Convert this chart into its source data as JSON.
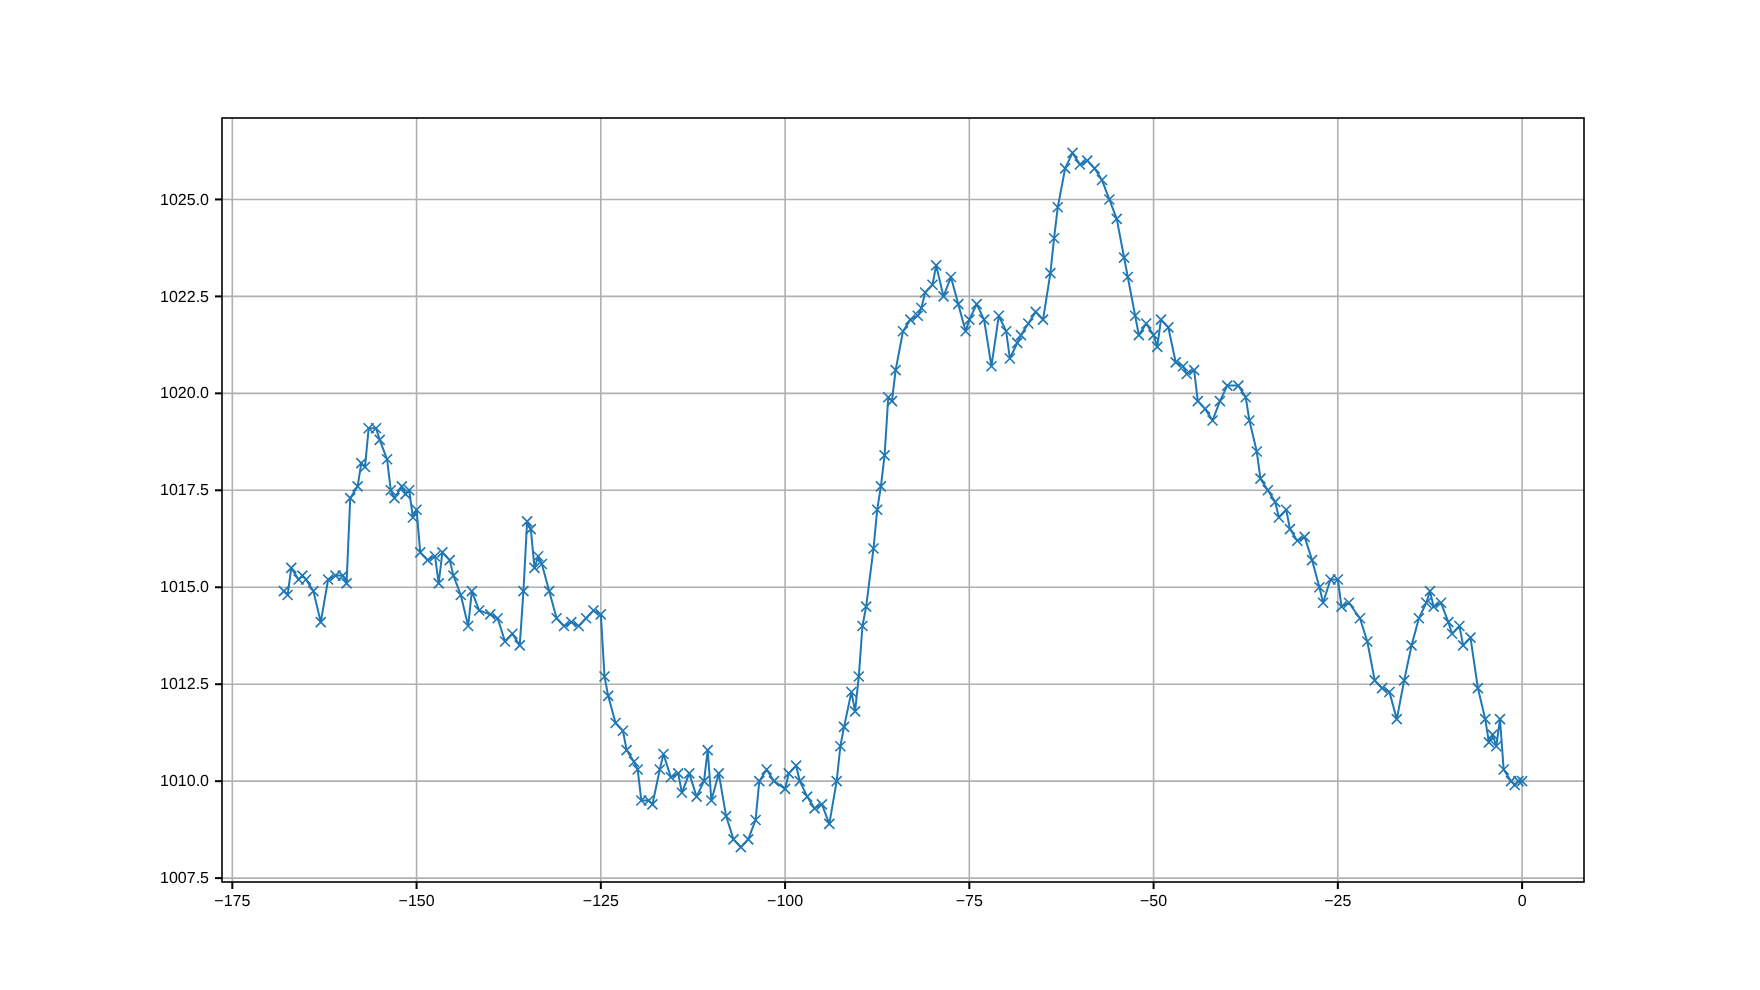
{
  "chart_data": {
    "type": "line",
    "marker": "cross",
    "line_style": "solid",
    "grid": true,
    "xlim": [
      -176.4,
      8.4
    ],
    "ylim": [
      1007.4,
      1027.1
    ],
    "xticks": [
      {
        "value": -175,
        "label": "−175"
      },
      {
        "value": -150,
        "label": "−150"
      },
      {
        "value": -125,
        "label": "−125"
      },
      {
        "value": -100,
        "label": "−100"
      },
      {
        "value": -75,
        "label": "−75"
      },
      {
        "value": -50,
        "label": "−50"
      },
      {
        "value": -25,
        "label": "−25"
      },
      0
    ],
    "yticks": [
      {
        "value": 1007.5,
        "label": "1007.5"
      },
      {
        "value": 1010,
        "label": "1010.0"
      },
      {
        "value": 1012.5,
        "label": "1012.5"
      },
      {
        "value": 1015,
        "label": "1015.0"
      },
      {
        "value": 1017.5,
        "label": "1017.5"
      },
      {
        "value": 1020,
        "label": "1020.0"
      },
      {
        "value": 1022.5,
        "label": "1022.5"
      },
      {
        "value": 1025,
        "label": "1025.0"
      }
    ],
    "series": [
      {
        "color": "#1f77b4",
        "x": [
          -168,
          -167.5,
          -167,
          -166,
          -165.5,
          -165,
          -164,
          -163,
          -162,
          -161,
          -160,
          -159.5,
          -159,
          -158,
          -157.5,
          -157,
          -156.5,
          -155.5,
          -155,
          -154,
          -153.5,
          -153,
          -152,
          -151.5,
          -151,
          -150.5,
          -150,
          -149.5,
          -148.5,
          -147.5,
          -147,
          -146.5,
          -145.5,
          -145,
          -144,
          -143,
          -142.5,
          -141.5,
          -140,
          -139,
          -138,
          -137,
          -136,
          -135.5,
          -135,
          -134.5,
          -134,
          -133.5,
          -133,
          -132,
          -131,
          -130,
          -129,
          -128,
          -127,
          -126,
          -125,
          -124.5,
          -124,
          -123,
          -122,
          -121.5,
          -120.5,
          -120,
          -119.5,
          -118.5,
          -118,
          -117,
          -116.5,
          -115.5,
          -114.5,
          -114,
          -113,
          -112,
          -111,
          -110.5,
          -110,
          -109,
          -108,
          -107,
          -106,
          -105,
          -104,
          -103.5,
          -102.5,
          -101.5,
          -100,
          -99.5,
          -98.5,
          -98,
          -97,
          -96,
          -95,
          -94,
          -93,
          -92.5,
          -92,
          -91,
          -90.5,
          -90,
          -89.5,
          -89,
          -88,
          -87.5,
          -87,
          -86.5,
          -86,
          -85.5,
          -85,
          -84,
          -83,
          -82,
          -81.5,
          -81,
          -80,
          -79.5,
          -78.5,
          -77.5,
          -76.5,
          -75.5,
          -75,
          -74,
          -73,
          -72,
          -71,
          -70,
          -69.5,
          -68.5,
          -68,
          -67,
          -66,
          -65,
          -64,
          -63.5,
          -63,
          -62,
          -61,
          -60,
          -59,
          -58,
          -57,
          -56,
          -55,
          -54,
          -53.5,
          -52.5,
          -52,
          -51,
          -50,
          -49.5,
          -49,
          -48,
          -47,
          -46,
          -45.5,
          -44.5,
          -44,
          -43,
          -42,
          -41,
          -40,
          -38.5,
          -37.5,
          -37,
          -36,
          -35.5,
          -34.5,
          -33.5,
          -33,
          -32,
          -31.5,
          -30.5,
          -29.5,
          -28.5,
          -27.5,
          -27,
          -26,
          -25,
          -24.5,
          -23.5,
          -22,
          -21,
          -20,
          -19,
          -18,
          -17,
          -16,
          -15,
          -14,
          -13,
          -12.5,
          -12,
          -11,
          -10,
          -9.5,
          -8.5,
          -8,
          -7,
          -6,
          -5,
          -4.5,
          -4,
          -3.5,
          -3,
          -2.5,
          -1.5,
          -1,
          -0.5,
          0
        ],
        "values": [
          1014.9,
          1014.8,
          1015.5,
          1015.2,
          1015.3,
          1015.2,
          1014.9,
          1014.1,
          1015.2,
          1015.3,
          1015.3,
          1015.1,
          1017.3,
          1017.6,
          1018.2,
          1018.1,
          1019.1,
          1019.1,
          1018.8,
          1018.3,
          1017.5,
          1017.3,
          1017.6,
          1017.4,
          1017.5,
          1016.8,
          1017.0,
          1015.9,
          1015.7,
          1015.8,
          1015.1,
          1015.9,
          1015.7,
          1015.3,
          1014.8,
          1014.0,
          1014.9,
          1014.4,
          1014.3,
          1014.2,
          1013.6,
          1013.8,
          1013.5,
          1014.9,
          1016.7,
          1016.5,
          1015.5,
          1015.8,
          1015.6,
          1014.9,
          1014.2,
          1014.0,
          1014.1,
          1014.0,
          1014.2,
          1014.4,
          1014.3,
          1012.7,
          1012.2,
          1011.5,
          1011.3,
          1010.8,
          1010.5,
          1010.3,
          1009.5,
          1009.5,
          1009.4,
          1010.3,
          1010.7,
          1010.1,
          1010.2,
          1009.7,
          1010.2,
          1009.6,
          1010.0,
          1010.8,
          1009.5,
          1010.2,
          1009.1,
          1008.5,
          1008.3,
          1008.5,
          1009.0,
          1010.0,
          1010.3,
          1010.0,
          1009.8,
          1010.2,
          1010.4,
          1010.0,
          1009.6,
          1009.3,
          1009.4,
          1008.9,
          1010.0,
          1010.9,
          1011.4,
          1012.3,
          1011.8,
          1012.7,
          1014.0,
          1014.5,
          1016.0,
          1017.0,
          1017.6,
          1018.4,
          1019.9,
          1019.8,
          1020.6,
          1021.6,
          1021.9,
          1022.0,
          1022.2,
          1022.6,
          1022.8,
          1023.3,
          1022.5,
          1023.0,
          1022.3,
          1021.6,
          1021.9,
          1022.3,
          1021.9,
          1020.7,
          1022.0,
          1021.6,
          1020.9,
          1021.3,
          1021.5,
          1021.8,
          1022.1,
          1021.9,
          1023.1,
          1024.0,
          1024.8,
          1025.8,
          1026.2,
          1025.9,
          1026.0,
          1025.8,
          1025.5,
          1025.0,
          1024.5,
          1023.5,
          1023.0,
          1022.0,
          1021.5,
          1021.8,
          1021.5,
          1021.2,
          1021.9,
          1021.7,
          1020.8,
          1020.7,
          1020.5,
          1020.6,
          1019.8,
          1019.6,
          1019.3,
          1019.8,
          1020.2,
          1020.2,
          1019.9,
          1019.3,
          1018.5,
          1017.8,
          1017.5,
          1017.2,
          1016.8,
          1017.0,
          1016.5,
          1016.2,
          1016.3,
          1015.7,
          1015.0,
          1014.6,
          1015.2,
          1015.2,
          1014.5,
          1014.6,
          1014.2,
          1013.6,
          1012.6,
          1012.4,
          1012.3,
          1011.6,
          1012.6,
          1013.5,
          1014.2,
          1014.6,
          1014.9,
          1014.5,
          1014.6,
          1014.1,
          1013.8,
          1014.0,
          1013.5,
          1013.7,
          1012.4,
          1011.6,
          1011.0,
          1011.2,
          1010.9,
          1011.6,
          1010.3,
          1010.0,
          1009.9,
          1010.0,
          1010.0
        ]
      }
    ]
  }
}
